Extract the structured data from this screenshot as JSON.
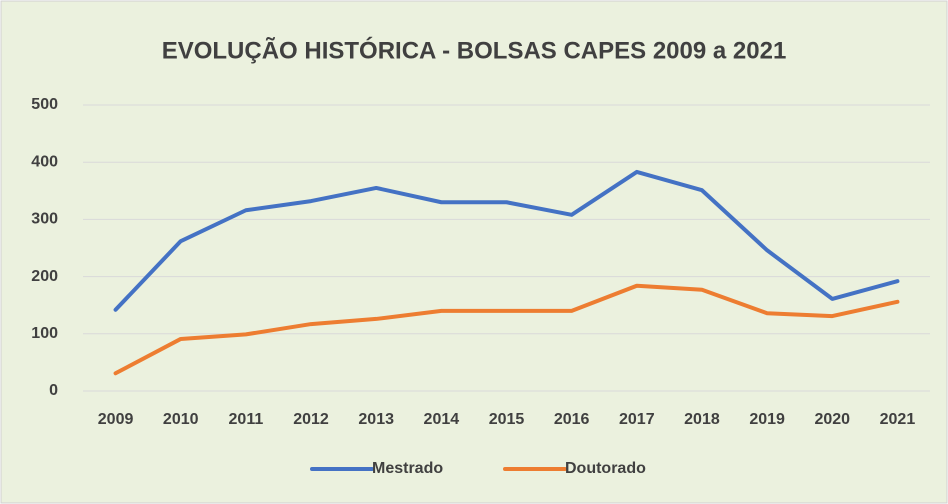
{
  "chart_data": {
    "type": "line",
    "title": "EVOLUÇÃO HISTÓRICA - BOLSAS CAPES 2009 a 2021",
    "categories": [
      "2009",
      "2010",
      "2011",
      "2012",
      "2013",
      "2014",
      "2015",
      "2016",
      "2017",
      "2018",
      "2019",
      "2020",
      "2021"
    ],
    "series": [
      {
        "name": "Mestrado",
        "color": "#4472c4",
        "values": [
          142,
          262,
          316,
          332,
          355,
          330,
          330,
          308,
          383,
          351,
          246,
          161,
          192
        ]
      },
      {
        "name": "Doutorado",
        "color": "#ed7d31",
        "values": [
          31,
          91,
          99,
          117,
          126,
          140,
          140,
          140,
          184,
          177,
          136,
          131,
          156
        ]
      }
    ],
    "ylim": [
      0,
      500
    ],
    "yticks": [
      0,
      100,
      200,
      300,
      400,
      500
    ],
    "grid": true,
    "legend": "bottom"
  }
}
